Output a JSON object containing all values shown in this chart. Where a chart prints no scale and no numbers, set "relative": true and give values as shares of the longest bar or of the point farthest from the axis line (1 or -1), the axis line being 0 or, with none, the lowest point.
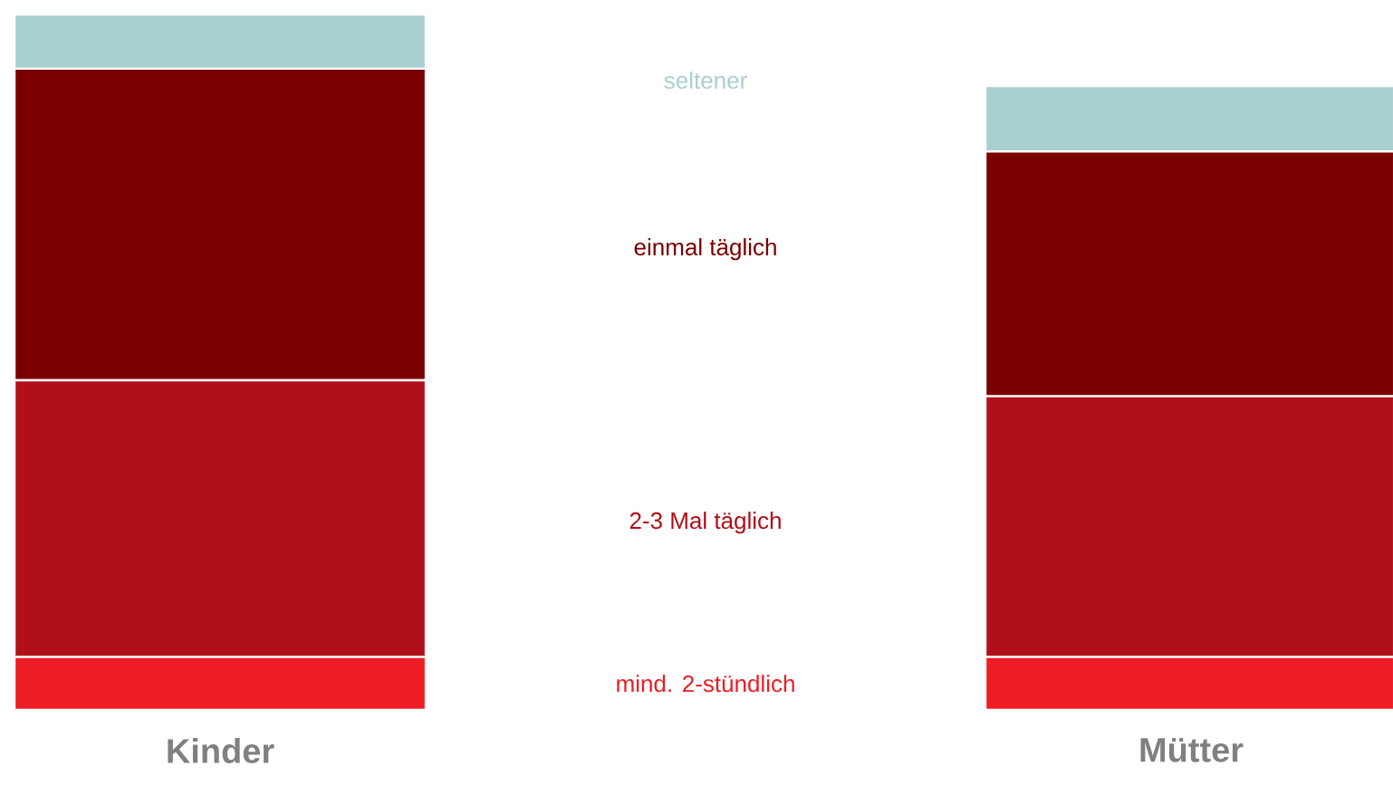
{
  "chart_data": {
    "type": "bar",
    "stacked": true,
    "relative": true,
    "categories": [
      "Kinder",
      "Mütter"
    ],
    "series": [
      {
        "name": "mind. 2-stündlich",
        "color": "#ee1c24",
        "values": [
          0.076,
          0.076
        ]
      },
      {
        "name": "2-3 Mal täglich",
        "color": "#b01018",
        "values": [
          0.398,
          0.375
        ]
      },
      {
        "name": "einmal täglich",
        "color": "#7a0000",
        "values": [
          0.448,
          0.352
        ]
      },
      {
        "name": "seltener",
        "color": "#a9d0d1",
        "values": [
          0.078,
          0.094
        ]
      }
    ]
  }
}
